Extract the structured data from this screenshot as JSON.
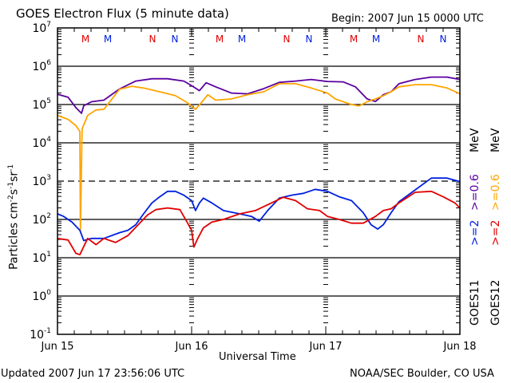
{
  "chart_data": {
    "type": "line",
    "title": "GOES Electron Flux (5 minute data)",
    "begin_label": "Begin: 2007 Jun 15 0000 UTC",
    "xlabel": "Universal Time",
    "ylabel": "Particles cm",
    "ylabel_parts": [
      "Particles cm",
      "-2",
      "s",
      "-1",
      "sr",
      "-1"
    ],
    "x_unit": "hours since 2007 Jun 15 00:00 UTC",
    "xlim": [
      0,
      72
    ],
    "x_ticks": [
      {
        "value": 0,
        "label": "Jun 15"
      },
      {
        "value": 24,
        "label": "Jun 16"
      },
      {
        "value": 48,
        "label": "Jun 17"
      },
      {
        "value": 72,
        "label": "Jun 18"
      }
    ],
    "yscale": "log",
    "ylim": [
      0.1,
      10000000
    ],
    "y_ticks": [
      {
        "exp": "7",
        "value": 10000000
      },
      {
        "exp": "6",
        "value": 1000000
      },
      {
        "exp": "5",
        "value": 100000
      },
      {
        "exp": "4",
        "value": 10000
      },
      {
        "exp": "3",
        "value": 1000
      },
      {
        "exp": "2",
        "value": 100
      },
      {
        "exp": "1",
        "value": 10
      },
      {
        "exp": "0",
        "value": 1
      },
      {
        "exp": "-1",
        "value": 0.1
      }
    ],
    "grid": {
      "solid_at": [
        1000000,
        100000,
        10000,
        100,
        10,
        1
      ],
      "dashed_at": [
        1000
      ]
    },
    "markers": [
      {
        "label": "M",
        "hour": 5,
        "color": "#e00000"
      },
      {
        "label": "M",
        "hour": 9,
        "color": "#0020e0"
      },
      {
        "label": "N",
        "hour": 17,
        "color": "#e00000"
      },
      {
        "label": "N",
        "hour": 21,
        "color": "#0020e0"
      },
      {
        "label": "M",
        "hour": 29,
        "color": "#e00000"
      },
      {
        "label": "M",
        "hour": 33,
        "color": "#0020e0"
      },
      {
        "label": "N",
        "hour": 41,
        "color": "#e00000"
      },
      {
        "label": "N",
        "hour": 45,
        "color": "#0020e0"
      },
      {
        "label": "M",
        "hour": 53,
        "color": "#e00000"
      },
      {
        "label": "M",
        "hour": 57,
        "color": "#0020e0"
      },
      {
        "label": "N",
        "hour": 65,
        "color": "#e00000"
      },
      {
        "label": "N",
        "hour": 69,
        "color": "#0020e0"
      }
    ],
    "legend": {
      "placement": "right",
      "columns": [
        {
          "satellite": "GOES11",
          "entries": [
            {
              "text": ">=2",
              "color": "#0020e0"
            },
            {
              "text": ">=0.6",
              "color": "#5a00a0"
            }
          ],
          "unit": "MeV"
        },
        {
          "satellite": "GOES12",
          "entries": [
            {
              "text": ">=2",
              "color": "#e00000"
            },
            {
              "text": ">=0.6",
              "color": "#ffa500"
            }
          ],
          "unit": "MeV"
        }
      ]
    },
    "series": [
      {
        "name": "GOES11 >=0.6 MeV",
        "color": "#5a00a0",
        "x": [
          0,
          1.9,
          3.3,
          4.3,
          4.7,
          6.1,
          8.3,
          11.1,
          14,
          16.9,
          19.7,
          22.6,
          24,
          25.4,
          26.6,
          28.3,
          31.1,
          34,
          36.9,
          39.7,
          42.6,
          45.4,
          48.3,
          51.1,
          53.3,
          55.4,
          56.9,
          58.3,
          59.7,
          61.1,
          64,
          66.9,
          69.7,
          72
        ],
        "y": [
          186000,
          155000,
          83000,
          59000,
          93000,
          118000,
          130000,
          255000,
          410000,
          470000,
          470000,
          410000,
          310000,
          230000,
          370000,
          290000,
          200000,
          190000,
          260000,
          380000,
          410000,
          450000,
          400000,
          390000,
          290000,
          140000,
          120000,
          180000,
          215000,
          350000,
          450000,
          520000,
          520000,
          450000
        ]
      },
      {
        "name": "GOES12 >=0.6 MeV",
        "color": "#ffa500",
        "x": [
          0,
          1.9,
          3.3,
          4,
          4.1,
          4.4,
          5.4,
          6.9,
          8.3,
          11.1,
          13.3,
          15.4,
          18.3,
          21.1,
          23.3,
          24.7,
          25.7,
          26.9,
          28.3,
          31.1,
          34,
          36.9,
          39.7,
          42.6,
          45.4,
          48.3,
          49.7,
          52.6,
          54,
          55.4,
          56.9,
          58.3,
          59.7,
          61.1,
          64,
          66.9,
          69.7,
          72
        ],
        "y": [
          52000,
          41000,
          28000,
          20000,
          50,
          23000,
          52000,
          72000,
          75000,
          250000,
          300000,
          270000,
          215000,
          170000,
          110000,
          75000,
          110000,
          180000,
          130000,
          140000,
          180000,
          215000,
          350000,
          350000,
          270000,
          200000,
          140000,
          100000,
          92000,
          118000,
          140000,
          170000,
          215000,
          290000,
          330000,
          330000,
          270000,
          190000
        ]
      },
      {
        "name": "GOES11 >=2 MeV",
        "color": "#0020e0",
        "x": [
          0,
          1.1,
          2.6,
          4,
          4.7,
          6.1,
          8.3,
          11.1,
          12.6,
          14,
          15.4,
          16.9,
          18.3,
          19.7,
          21.1,
          22.6,
          24,
          24.7,
          25.4,
          26.1,
          27.6,
          29.7,
          32.6,
          34.7,
          36.1,
          37.6,
          39.7,
          41.9,
          44,
          46.1,
          48.3,
          50.4,
          52.6,
          54.7,
          56.1,
          57.3,
          58.3,
          59.7,
          61.1,
          64,
          66.9,
          69.7,
          72
        ],
        "y": [
          140,
          120,
          85,
          52,
          28,
          32,
          32,
          45,
          52,
          73,
          140,
          270,
          390,
          540,
          540,
          430,
          310,
          170,
          270,
          360,
          270,
          170,
          140,
          120,
          90,
          170,
          360,
          430,
          480,
          610,
          540,
          390,
          310,
          150,
          73,
          56,
          73,
          150,
          290,
          590,
          1200,
          1200,
          970
        ]
      },
      {
        "name": "GOES12 >=2 MeV",
        "color": "#e00000",
        "x": [
          0,
          1.9,
          3.3,
          4,
          5.4,
          6.9,
          8.3,
          10.4,
          12.6,
          14.7,
          16.1,
          17.6,
          19.7,
          21.9,
          23,
          24,
          24.4,
          25.1,
          26.1,
          27.6,
          29.7,
          32.6,
          35.4,
          38.3,
          40.4,
          42.6,
          44.7,
          46.9,
          48.3,
          50.4,
          52.6,
          54.7,
          56.9,
          58.3,
          59.7,
          61.1,
          64,
          66.9,
          69,
          71.1,
          72
        ],
        "y": [
          32,
          29,
          13,
          12,
          32,
          22,
          32,
          25,
          38,
          80,
          130,
          180,
          200,
          180,
          95,
          52,
          19,
          32,
          60,
          85,
          100,
          140,
          170,
          270,
          380,
          310,
          190,
          170,
          120,
          100,
          80,
          80,
          120,
          170,
          190,
          270,
          510,
          540,
          390,
          270,
          200
        ]
      }
    ]
  },
  "footer": {
    "updated": "Updated 2007 Jun 17 23:56:06 UTC",
    "credit": "NOAA/SEC Boulder, CO USA"
  }
}
